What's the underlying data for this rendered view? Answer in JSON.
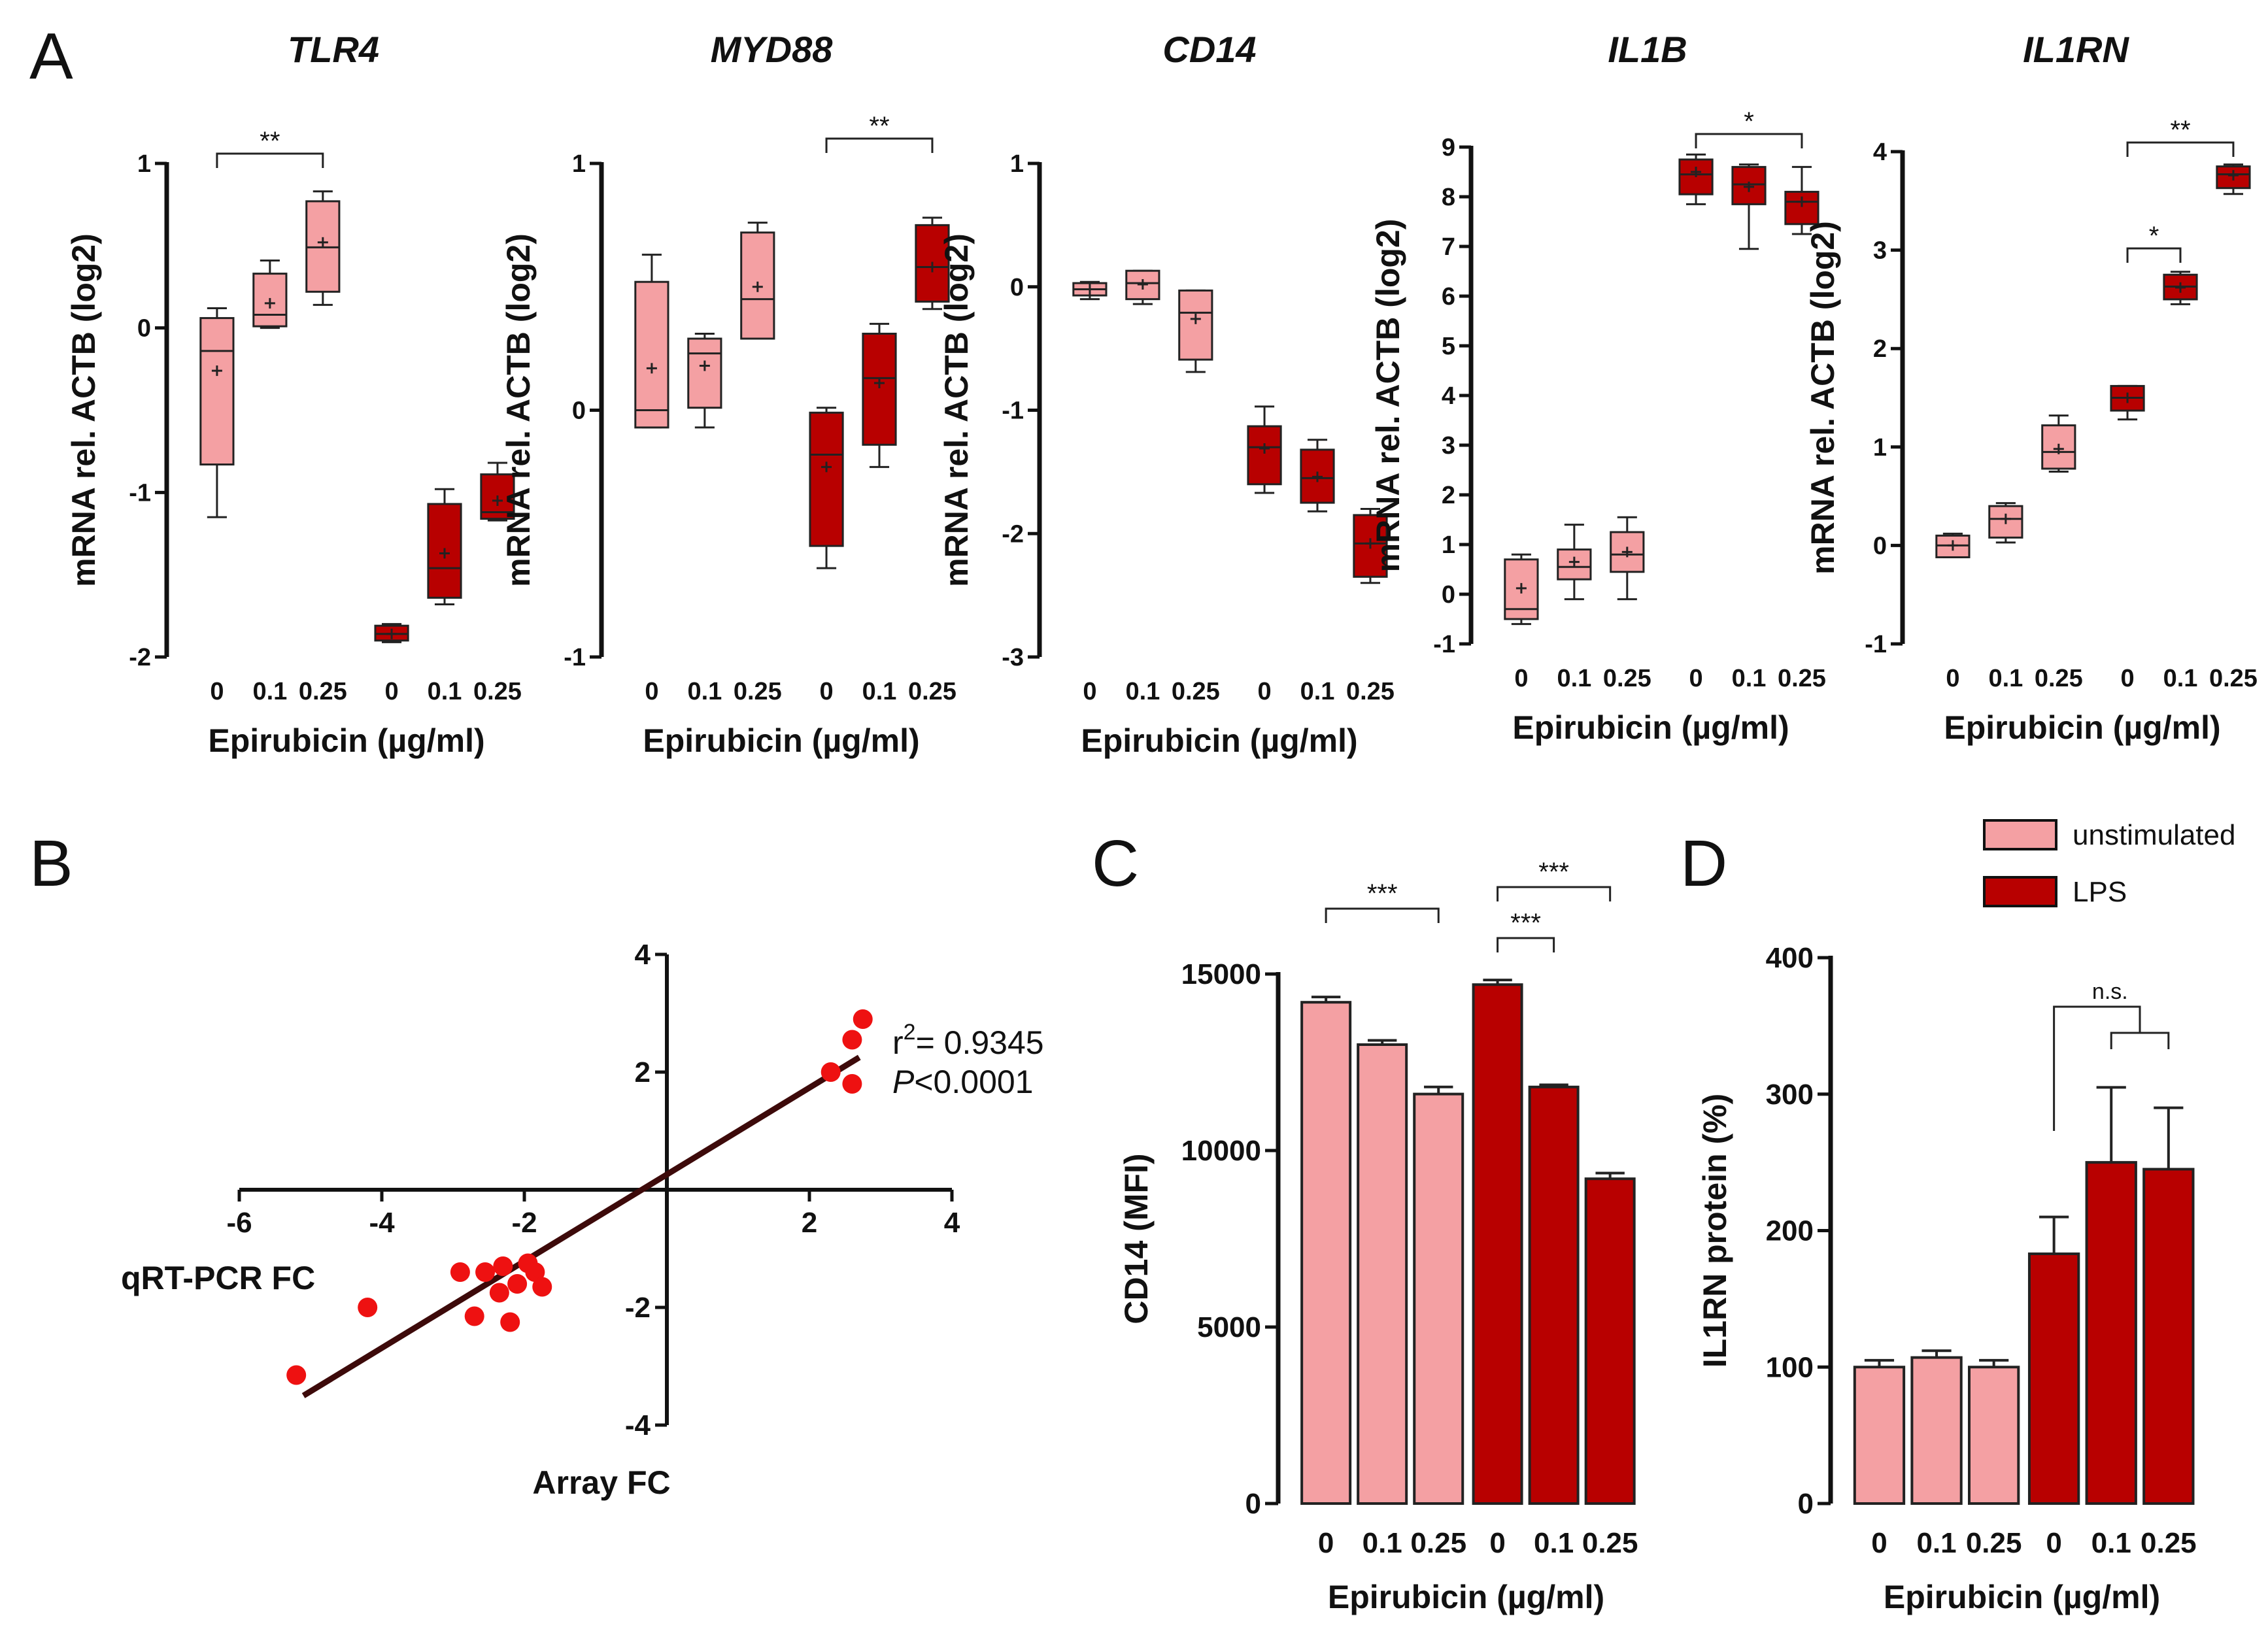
{
  "figure": {
    "panel_letters": [
      "A",
      "B",
      "C",
      "D"
    ]
  },
  "colors": {
    "unstimulated": "#f4a0a3",
    "lps": "#b80000",
    "axis": "#111111",
    "scatter_points": "#ee1111",
    "regression_line": "#3d0a0a"
  },
  "legend": {
    "items": [
      {
        "label": "unstimulated",
        "color": "#f4a0a3"
      },
      {
        "label": "LPS",
        "color": "#b80000"
      }
    ]
  },
  "chart_data": [
    {
      "id": "A1",
      "type": "box",
      "panel": "A",
      "title": "TLR4",
      "ylabel": "mRNA rel. ACTB (log2)",
      "xlabel": "Epirubicin (µg/ml)",
      "ylim": [
        -2,
        1
      ],
      "yticks": [
        -2,
        -1,
        0,
        1
      ],
      "categories": [
        "0",
        "0.1",
        "0.25",
        "0",
        "0.1",
        "0.25"
      ],
      "series_of_box": [
        "unstimulated",
        "unstimulated",
        "unstimulated",
        "LPS",
        "LPS",
        "LPS"
      ],
      "boxes": [
        {
          "min": -1.15,
          "q1": -0.83,
          "median": -0.14,
          "q3": 0.06,
          "max": 0.12,
          "mean": -0.26
        },
        {
          "min": 0.0,
          "q1": 0.01,
          "median": 0.08,
          "q3": 0.33,
          "max": 0.41,
          "mean": 0.15
        },
        {
          "min": 0.14,
          "q1": 0.22,
          "median": 0.49,
          "q3": 0.77,
          "max": 0.83,
          "mean": 0.52
        },
        {
          "min": -1.91,
          "q1": -1.9,
          "median": -1.86,
          "q3": -1.81,
          "max": -1.8,
          "mean": -1.86
        },
        {
          "min": -1.68,
          "q1": -1.64,
          "median": -1.46,
          "q3": -1.07,
          "max": -0.98,
          "mean": -1.37
        },
        {
          "min": -1.17,
          "q1": -1.16,
          "median": -1.12,
          "q3": -0.89,
          "max": -0.82,
          "mean": -1.05
        }
      ],
      "significance": [
        {
          "from": 0,
          "to": 2,
          "label": "**"
        }
      ]
    },
    {
      "id": "A2",
      "type": "box",
      "panel": "A",
      "title": "MYD88",
      "ylabel": "mRNA rel. ACTB (log2)",
      "xlabel": "Epirubicin (µg/ml)",
      "ylim": [
        -1,
        1
      ],
      "yticks": [
        -1,
        0,
        1
      ],
      "categories": [
        "0",
        "0.1",
        "0.25",
        "0",
        "0.1",
        "0.25"
      ],
      "series_of_box": [
        "unstimulated",
        "unstimulated",
        "unstimulated",
        "LPS",
        "LPS",
        "LPS"
      ],
      "boxes": [
        {
          "min": -0.07,
          "q1": -0.07,
          "median": 0.0,
          "q3": 0.52,
          "max": 0.63,
          "mean": 0.17
        },
        {
          "min": -0.07,
          "q1": 0.01,
          "median": 0.23,
          "q3": 0.29,
          "max": 0.31,
          "mean": 0.18
        },
        {
          "min": 0.29,
          "q1": 0.29,
          "median": 0.45,
          "q3": 0.72,
          "max": 0.76,
          "mean": 0.5
        },
        {
          "min": -0.64,
          "q1": -0.55,
          "median": -0.18,
          "q3": -0.01,
          "max": 0.01,
          "mean": -0.23
        },
        {
          "min": -0.23,
          "q1": -0.14,
          "median": 0.13,
          "q3": 0.31,
          "max": 0.35,
          "mean": 0.11
        },
        {
          "min": 0.41,
          "q1": 0.44,
          "median": 0.58,
          "q3": 0.75,
          "max": 0.78,
          "mean": 0.58
        }
      ],
      "significance": [
        {
          "from": 3,
          "to": 5,
          "label": "**"
        }
      ]
    },
    {
      "id": "A3",
      "type": "box",
      "panel": "A",
      "title": "CD14",
      "ylabel": "mRNA rel. ACTB (log2)",
      "xlabel": "Epirubicin (µg/ml)",
      "ylim": [
        -3,
        1
      ],
      "yticks": [
        -3,
        -2,
        -1,
        0,
        1
      ],
      "categories": [
        "0",
        "0.1",
        "0.25",
        "0",
        "0.1",
        "0.25"
      ],
      "series_of_box": [
        "unstimulated",
        "unstimulated",
        "unstimulated",
        "LPS",
        "LPS",
        "LPS"
      ],
      "boxes": [
        {
          "min": -0.1,
          "q1": -0.07,
          "median": -0.02,
          "q3": 0.03,
          "max": 0.04,
          "mean": -0.02
        },
        {
          "min": -0.14,
          "q1": -0.1,
          "median": 0.03,
          "q3": 0.13,
          "max": 0.13,
          "mean": 0.02
        },
        {
          "min": -0.69,
          "q1": -0.59,
          "median": -0.21,
          "q3": -0.03,
          "max": -0.03,
          "mean": -0.26
        },
        {
          "min": -1.67,
          "q1": -1.6,
          "median": -1.3,
          "q3": -1.13,
          "max": -0.97,
          "mean": -1.31
        },
        {
          "min": -1.82,
          "q1": -1.75,
          "median": -1.55,
          "q3": -1.32,
          "max": -1.24,
          "mean": -1.54
        },
        {
          "min": -2.4,
          "q1": -2.35,
          "median": -2.08,
          "q3": -1.85,
          "max": -1.8,
          "mean": -2.08
        }
      ],
      "significance": []
    },
    {
      "id": "A4",
      "type": "box",
      "panel": "A",
      "title": "IL1B",
      "ylabel": "mRNA rel. ACTB (log2)",
      "xlabel": "Epirubicin (µg/ml)",
      "ylim": [
        -1,
        9
      ],
      "yticks": [
        -1,
        0,
        1,
        2,
        3,
        4,
        5,
        6,
        7,
        8,
        9
      ],
      "categories": [
        "0",
        "0.1",
        "0.25",
        "0",
        "0.1",
        "0.25"
      ],
      "series_of_box": [
        "unstimulated",
        "unstimulated",
        "unstimulated",
        "LPS",
        "LPS",
        "LPS"
      ],
      "boxes": [
        {
          "min": -0.6,
          "q1": -0.5,
          "median": -0.3,
          "q3": 0.7,
          "max": 0.8,
          "mean": 0.12
        },
        {
          "min": -0.1,
          "q1": 0.3,
          "median": 0.55,
          "q3": 0.9,
          "max": 1.4,
          "mean": 0.65
        },
        {
          "min": -0.1,
          "q1": 0.45,
          "median": 0.8,
          "q3": 1.25,
          "max": 1.55,
          "mean": 0.85
        },
        {
          "min": 7.85,
          "q1": 8.05,
          "median": 8.45,
          "q3": 8.75,
          "max": 8.85,
          "mean": 8.5
        },
        {
          "min": 6.95,
          "q1": 7.85,
          "median": 8.25,
          "q3": 8.6,
          "max": 8.65,
          "mean": 8.2
        },
        {
          "min": 7.25,
          "q1": 7.45,
          "median": 7.9,
          "q3": 8.1,
          "max": 8.6,
          "mean": 7.9
        }
      ],
      "significance": [
        {
          "from": 3,
          "to": 5,
          "label": "*"
        }
      ]
    },
    {
      "id": "A5",
      "type": "box",
      "panel": "A",
      "title": "IL1RN",
      "ylabel": "mRNA rel. ACTB (log2)",
      "xlabel": "Epirubicin (µg/ml)",
      "ylim": [
        -1,
        4
      ],
      "yticks": [
        -1,
        0,
        1,
        2,
        3,
        4
      ],
      "categories": [
        "0",
        "0.1",
        "0.25",
        "0",
        "0.1",
        "0.25"
      ],
      "series_of_box": [
        "unstimulated",
        "unstimulated",
        "unstimulated",
        "LPS",
        "LPS",
        "LPS"
      ],
      "boxes": [
        {
          "min": -0.12,
          "q1": -0.12,
          "median": 0.0,
          "q3": 0.1,
          "max": 0.12,
          "mean": 0.0
        },
        {
          "min": 0.03,
          "q1": 0.08,
          "median": 0.27,
          "q3": 0.4,
          "max": 0.43,
          "mean": 0.27
        },
        {
          "min": 0.75,
          "q1": 0.78,
          "median": 0.95,
          "q3": 1.22,
          "max": 1.32,
          "mean": 0.98
        },
        {
          "min": 1.28,
          "q1": 1.37,
          "median": 1.5,
          "q3": 1.62,
          "max": 1.62,
          "mean": 1.5
        },
        {
          "min": 2.45,
          "q1": 2.5,
          "median": 2.63,
          "q3": 2.75,
          "max": 2.78,
          "mean": 2.62
        },
        {
          "min": 3.57,
          "q1": 3.63,
          "median": 3.77,
          "q3": 3.85,
          "max": 3.87,
          "mean": 3.76
        }
      ],
      "significance": [
        {
          "from": 3,
          "to": 4,
          "label": "*"
        },
        {
          "from": 3,
          "to": 5,
          "label": "**"
        }
      ]
    },
    {
      "id": "B",
      "type": "scatter",
      "panel": "B",
      "xlabel": "Array FC",
      "ylabel": "qRT-PCR FC",
      "xlim": [
        -6,
        4
      ],
      "ylim": [
        -4,
        4
      ],
      "xticks": [
        -6,
        -4,
        -2,
        2,
        4
      ],
      "yticks": [
        -4,
        -2,
        2,
        4
      ],
      "x": [
        -5.2,
        -4.2,
        -2.9,
        -2.7,
        -2.55,
        -2.35,
        -2.3,
        -2.2,
        -2.1,
        -1.95,
        -1.85,
        -1.75,
        2.3,
        2.6,
        2.6,
        2.75
      ],
      "y": [
        -3.15,
        -2.0,
        -1.4,
        -2.15,
        -1.4,
        -1.75,
        -1.3,
        -2.25,
        -1.6,
        -1.25,
        -1.4,
        -1.65,
        2.0,
        1.8,
        2.55,
        2.9
      ],
      "regression": {
        "x": [
          -5.1,
          2.7
        ],
        "y": [
          -3.5,
          2.25
        ]
      },
      "annotation": {
        "r2_prefix": "r",
        "r2_sup": "2",
        "r2_value": "= 0.9345",
        "p_label": "P",
        "p_value": "<0.0001"
      }
    },
    {
      "id": "C",
      "type": "bar",
      "panel": "C",
      "ylabel": "CD14 (MFI)",
      "xlabel": "Epirubicin (µg/ml)",
      "ylim": [
        0,
        15000
      ],
      "yticks": [
        0,
        5000,
        10000,
        15000
      ],
      "categories": [
        "0",
        "0.1",
        "0.25",
        "0",
        "0.1",
        "0.25"
      ],
      "series_of_bar": [
        "unstimulated",
        "unstimulated",
        "unstimulated",
        "LPS",
        "LPS",
        "LPS"
      ],
      "values": [
        14200,
        13000,
        11600,
        14700,
        11800,
        9200
      ],
      "errors": [
        150,
        120,
        200,
        130,
        60,
        160
      ],
      "significance": [
        {
          "from": 0,
          "to": 2,
          "label": "***",
          "level": 0
        },
        {
          "from": 3,
          "to": 4,
          "label": "***",
          "level": 0
        },
        {
          "from": 3,
          "to": 5,
          "label": "***",
          "level": 1
        }
      ]
    },
    {
      "id": "D",
      "type": "bar",
      "panel": "D",
      "ylabel": "IL1RN protein (%)",
      "xlabel": "Epirubicin (µg/ml)",
      "ylim": [
        0,
        400
      ],
      "yticks": [
        0,
        100,
        200,
        300,
        400
      ],
      "categories": [
        "0",
        "0.1",
        "0.25",
        "0",
        "0.1",
        "0.25"
      ],
      "series_of_bar": [
        "unstimulated",
        "unstimulated",
        "unstimulated",
        "LPS",
        "LPS",
        "LPS"
      ],
      "values": [
        100,
        107,
        100,
        183,
        250,
        245
      ],
      "errors": [
        5,
        5,
        5,
        27,
        55,
        45
      ],
      "significance": [
        {
          "from": 3,
          "to": "4-5",
          "label": "n.s."
        }
      ]
    }
  ]
}
